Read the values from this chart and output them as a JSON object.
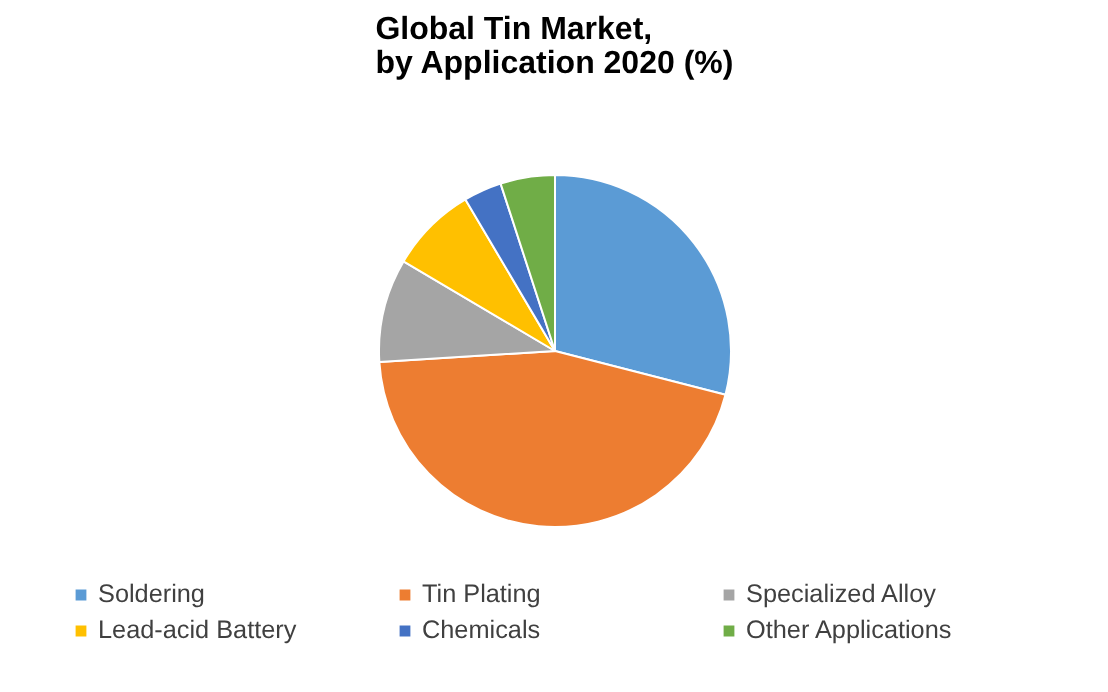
{
  "chart_data": {
    "type": "pie",
    "title": "Global Tin Market, by Application 2020 (%)",
    "categories": [
      "Soldering",
      "Tin Plating",
      "Specialized Alloy",
      "Lead-acid Battery",
      "Chemicals",
      "Other Applications"
    ],
    "values": [
      29,
      45,
      9.5,
      8,
      3.5,
      5
    ],
    "colors": [
      "#5b9bd5",
      "#ed7d31",
      "#a5a5a5",
      "#ffc000",
      "#4472c4",
      "#70ad47"
    ],
    "legend": "bottom"
  }
}
